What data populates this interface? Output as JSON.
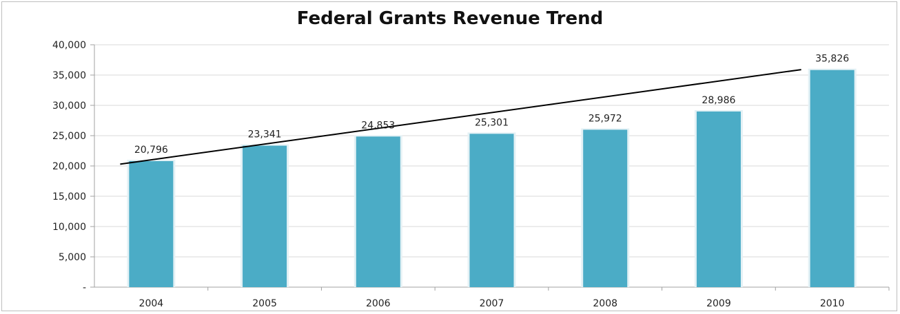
{
  "chart_data": {
    "type": "bar",
    "title": "Federal Grants Revenue Trend",
    "xlabel": "",
    "ylabel": "",
    "categories": [
      "2004",
      "2005",
      "2006",
      "2007",
      "2008",
      "2009",
      "2010"
    ],
    "values": [
      20796,
      23341,
      24853,
      25301,
      25972,
      28986,
      35826
    ],
    "data_labels": [
      "20,796",
      "23,341",
      "24,853",
      "25,301",
      "25,972",
      "28,986",
      "35,826"
    ],
    "ylim": [
      0,
      40000
    ],
    "y_ticks": [
      0,
      5000,
      10000,
      15000,
      20000,
      25000,
      30000,
      35000,
      40000
    ],
    "y_tick_labels": [
      "-",
      "5,000",
      "10,000",
      "15,000",
      "20,000",
      "25,000",
      "30,000",
      "35,000",
      "40,000"
    ],
    "grid": true,
    "legend": "none",
    "trendline": {
      "type": "linear",
      "from": {
        "x": "2004",
        "y": 20300
      },
      "to": {
        "x": "2010",
        "y": 35900
      }
    },
    "colors": {
      "bar": "#4bacc6",
      "bar_highlight": "#e4f1f5",
      "trendline": "#000000",
      "gridline": "#d9d9d9",
      "axis": "#a0a0a0"
    }
  }
}
